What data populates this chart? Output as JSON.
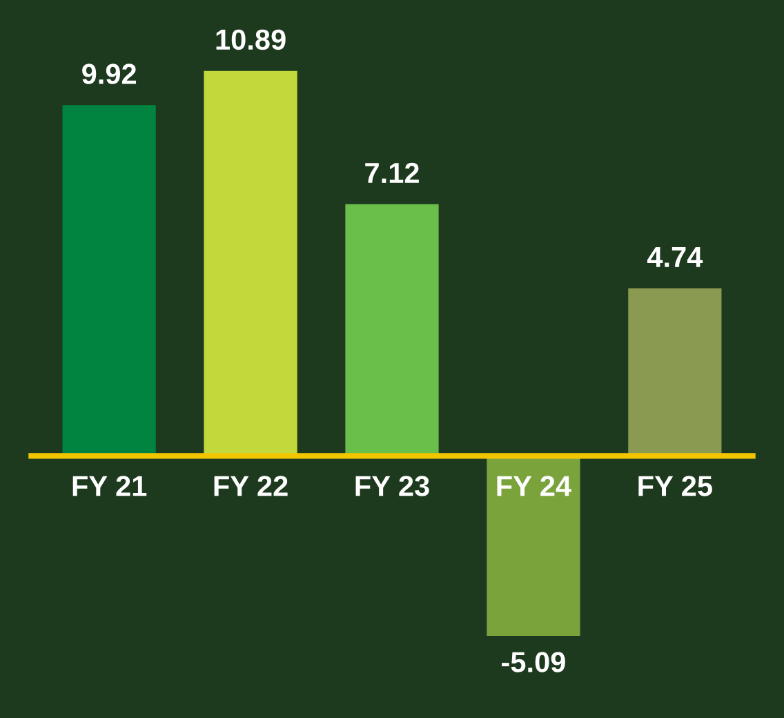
{
  "chart_data": {
    "type": "bar",
    "categories": [
      "FY 21",
      "FY 22",
      "FY 23",
      "FY 24",
      "FY 25"
    ],
    "values": [
      9.92,
      10.89,
      7.12,
      -5.09,
      4.74
    ],
    "colors": [
      "#00843f",
      "#c3d83a",
      "#6abf4b",
      "#7aa33b",
      "#8a9a50"
    ],
    "data_labels": true
  }
}
